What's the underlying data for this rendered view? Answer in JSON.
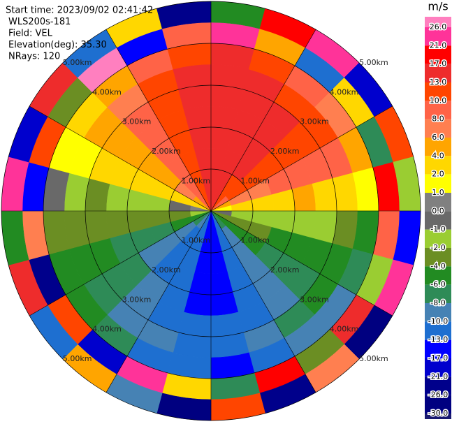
{
  "chart_data": {
    "type": "ppi",
    "info": [
      "Start time: 2023/09/02 02:41:42",
      "WLS200s-181",
      "Field: VEL",
      "Elevation(deg): 35.30",
      "NRays: 120"
    ],
    "rlim": [
      0,
      5
    ],
    "range_rings": [
      {
        "value": 1,
        "label": "1.00km"
      },
      {
        "value": 2,
        "label": "2.00km"
      },
      {
        "value": 3,
        "label": "3.00km"
      },
      {
        "value": 4,
        "label": "4.00km"
      },
      {
        "value": 5,
        "label": "5.00km"
      }
    ],
    "azimuth_bins": [
      0,
      15,
      30,
      45,
      60,
      75,
      90,
      105,
      120,
      135,
      150,
      165,
      180,
      195,
      210,
      225,
      240,
      255,
      270,
      285,
      300,
      315,
      330,
      345,
      360
    ],
    "range_bins": [
      0,
      0.5,
      1,
      1.5,
      2,
      2.5,
      3,
      3.5,
      4,
      4.5,
      5
    ],
    "values": [
      [
        14,
        15,
        15,
        16,
        16,
        15,
        14,
        13,
        22,
        -5
      ],
      [
        13,
        14,
        14,
        15,
        15,
        14,
        13,
        12,
        5,
        18
      ],
      [
        11,
        12,
        13,
        13,
        14,
        13,
        12,
        9,
        -12,
        25
      ],
      [
        8,
        10,
        11,
        11,
        12,
        12,
        11,
        7,
        3,
        -20
      ],
      [
        4,
        6,
        7,
        8,
        9,
        9,
        8,
        5,
        -8,
        12
      ],
      [
        1.5,
        2.5,
        3,
        3,
        4,
        3,
        2.5,
        1.5,
        20,
        -2
      ],
      [
        -0.5,
        -1.5,
        -1.5,
        -2,
        -2,
        -1.5,
        -3,
        -5,
        9,
        -15
      ],
      [
        -3,
        -4,
        -4,
        -5,
        -5,
        -5,
        -5,
        -7,
        -1.5,
        24
      ],
      [
        -5,
        -6,
        -6,
        -7,
        -7,
        -7,
        -6,
        -9,
        15,
        -27
      ],
      [
        -8,
        -9,
        -9,
        -9,
        -9,
        -9,
        -8,
        -10,
        -3,
        7
      ],
      [
        -11,
        -12,
        -12,
        -12,
        -11,
        -11,
        -10,
        -12,
        18,
        -22
      ],
      [
        -14,
        -15,
        -15,
        -14,
        -14,
        -13,
        -12,
        -14,
        -7,
        11
      ],
      [
        -14,
        -15,
        -15,
        -14,
        -14,
        -12,
        -11,
        -13,
        2.5,
        -28
      ],
      [
        -12,
        -13,
        -13,
        -12,
        -12,
        -11,
        -10,
        -11,
        23,
        -9
      ],
      [
        -10,
        -11,
        -11,
        -11,
        -10,
        -9,
        -9,
        -8,
        -18,
        5
      ],
      [
        -8,
        -9,
        -9,
        -9,
        -8,
        -7,
        -7,
        -6,
        12,
        -12
      ],
      [
        -5,
        -6,
        -7,
        -7,
        -7,
        -6,
        -6,
        -5,
        -25,
        16
      ],
      [
        -2,
        -3,
        -3,
        -4,
        -4,
        -4,
        -3,
        -3,
        6,
        -6
      ],
      [
        0.5,
        -0.5,
        -1.5,
        -1.5,
        -1.5,
        -2.5,
        -1.5,
        -0.5,
        -14,
        21
      ],
      [
        2.5,
        3,
        2.5,
        2.5,
        3,
        2.5,
        1.5,
        1.5,
        10,
        -19
      ],
      [
        5,
        6,
        5,
        5,
        5,
        5,
        4,
        3,
        -4,
        14
      ],
      [
        8,
        9,
        9,
        8,
        8,
        8,
        7,
        5,
        26,
        -11
      ],
      [
        11,
        12,
        12,
        12,
        11,
        11,
        10,
        8,
        -16,
        3
      ],
      [
        14,
        15,
        15,
        15,
        15,
        14,
        13,
        11,
        8,
        -24
      ]
    ],
    "colorbar": {
      "label": "m/s",
      "ticks": [
        {
          "value": 26,
          "label": "26.0"
        },
        {
          "value": 21,
          "label": "21.0"
        },
        {
          "value": 17,
          "label": "17.0"
        },
        {
          "value": 13,
          "label": "13.0"
        },
        {
          "value": 10,
          "label": "10.0"
        },
        {
          "value": 8,
          "label": "8.0"
        },
        {
          "value": 6,
          "label": "6.0"
        },
        {
          "value": 4,
          "label": "4.0"
        },
        {
          "value": 2,
          "label": "2.0"
        },
        {
          "value": 1,
          "label": "1.0"
        },
        {
          "value": 0,
          "label": "0.0"
        },
        {
          "value": -1,
          "label": "-1.0"
        },
        {
          "value": -2,
          "label": "-2.0"
        },
        {
          "value": -4,
          "label": "-4.0"
        },
        {
          "value": -6,
          "label": "-6.0"
        },
        {
          "value": -8,
          "label": "-8.0"
        },
        {
          "value": -10,
          "label": "-10.0"
        },
        {
          "value": -13,
          "label": "-13.0"
        },
        {
          "value": -17,
          "label": "-17.0"
        },
        {
          "value": -21,
          "label": "-21.0"
        },
        {
          "value": -26,
          "label": "-26.0"
        },
        {
          "value": -30,
          "label": "-30.0"
        }
      ],
      "colors": [
        "#ff7fbf",
        "#ff3399",
        "#ff0000",
        "#ee2c2c",
        "#ff4500",
        "#ff6347",
        "#ff7f50",
        "#ffa500",
        "#ffd700",
        "#ffff00",
        "#808080",
        "#696969",
        "#9acd32",
        "#6b8e23",
        "#228b22",
        "#2e8b57",
        "#4682b4",
        "#1e6fd0",
        "#0000ff",
        "#0000cd",
        "#00008b",
        "#000080",
        "#191970"
      ]
    }
  }
}
